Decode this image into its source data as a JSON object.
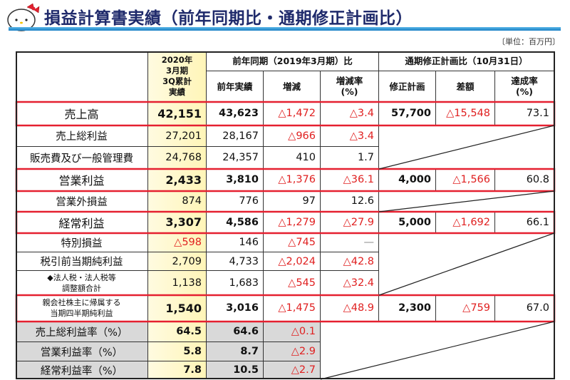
{
  "title": "損益計算書実績（前年同期比・通期修正計画比）",
  "unit": "〔単位：百万円〕",
  "logo": "hello-kitty",
  "header": {
    "current": "2020年\n3月期\n3Q累計\n実績",
    "prev_group": "前年同期（2019年3月期）比",
    "plan_group": "通期修正計画比（10月31日）",
    "cols": [
      "前年実績",
      "増減",
      "増減率\n(%)",
      "修正計画",
      "差額",
      "達成率\n(%)"
    ]
  },
  "rows": [
    {
      "label": "売上高",
      "v": [
        "42,151",
        "43,623",
        "△1,472",
        "△3.4",
        "57,700",
        "△15,548",
        "73.1"
      ],
      "bold": true,
      "highlight": true
    },
    {
      "label": "売上総利益",
      "v": [
        "27,201",
        "28,167",
        "△966",
        "△3.4"
      ]
    },
    {
      "label": "販売費及び一般管理費",
      "v": [
        "24,768",
        "24,357",
        "410",
        "1.7"
      ]
    },
    {
      "label": "営業利益",
      "v": [
        "2,433",
        "3,810",
        "△1,376",
        "△36.1",
        "4,000",
        "△1,566",
        "60.8"
      ],
      "bold": true,
      "highlight": true
    },
    {
      "label": "営業外損益",
      "v": [
        "874",
        "776",
        "97",
        "12.6"
      ]
    },
    {
      "label": "経常利益",
      "v": [
        "3,307",
        "4,586",
        "△1,279",
        "△27.9",
        "5,000",
        "△1,692",
        "66.1"
      ],
      "bold": true,
      "highlight": true
    },
    {
      "label": "特別損益",
      "v": [
        "△598",
        "146",
        "△745",
        "—"
      ]
    },
    {
      "label": "税引前当期純利益",
      "v": [
        "2,709",
        "4,733",
        "△2,024",
        "△42.8"
      ]
    },
    {
      "label": "◆法人税・法人税等\n調整額合計",
      "v": [
        "1,138",
        "1,683",
        "△545",
        "△32.4"
      ],
      "small": true
    },
    {
      "label": "親会社株主に帰属する\n当期四半期純利益",
      "v": [
        "1,540",
        "3,016",
        "△1,475",
        "△48.9",
        "2,300",
        "△759",
        "67.0"
      ],
      "bold": true,
      "highlight": true,
      "small": true
    },
    {
      "label": "売上総利益率（%）",
      "v": [
        "64.5",
        "64.6",
        "△0.1"
      ],
      "rate": true
    },
    {
      "label": "営業利益率（%）",
      "v": [
        "5.8",
        "8.7",
        "△2.9"
      ],
      "rate": true
    },
    {
      "label": "経常利益率（%）",
      "v": [
        "7.8",
        "10.5",
        "△2.7"
      ],
      "rate": true
    }
  ]
}
